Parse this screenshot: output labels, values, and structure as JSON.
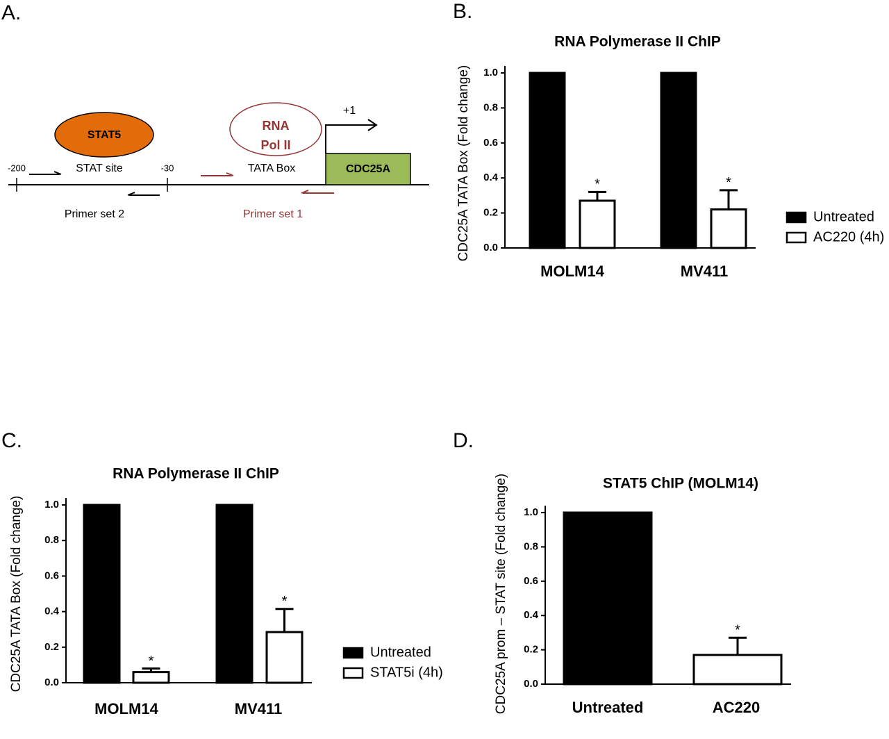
{
  "panel_labels": [
    "A.",
    "B.",
    "C.",
    "D."
  ],
  "diagram": {
    "stat5": "STAT5",
    "pol2": [
      "RNA",
      "Pol II"
    ],
    "tss": "+1",
    "pos_200": "-200",
    "stat_site": "STAT site",
    "pos_30": "-30",
    "tata_box": "TATA Box",
    "gene": "CDC25A",
    "primer2": "Primer set 2",
    "primer1": "Primer set 1"
  },
  "chart_data": [
    {
      "type": "bar",
      "title": "RNA Polymerase II ChIP",
      "y_label": "CDC25A TATA Box (Fold change)",
      "categories": [
        "MOLM14",
        "MV411"
      ],
      "series": [
        {
          "name": "Untreated",
          "color": "#000000",
          "values": [
            1,
            1
          ]
        },
        {
          "name": "AC220 (4h)",
          "color": "#ffffff",
          "values": [
            0.27,
            0.22
          ],
          "errors": [
            0.05,
            0.11
          ],
          "significance": [
            "*",
            "*"
          ]
        }
      ],
      "ylim": [
        0,
        1
      ],
      "yticks": [
        {
          "value": 0,
          "label": "0.0"
        },
        {
          "value": 0.2,
          "label": "0.2"
        },
        {
          "value": 0.4,
          "label": "0.4"
        },
        {
          "value": 0.6,
          "label": "0.6"
        },
        {
          "value": 0.8,
          "label": "0.8"
        },
        {
          "value": 1,
          "label": "1.0"
        }
      ],
      "legend": "right"
    },
    {
      "type": "bar",
      "title": "RNA Polymerase II ChIP",
      "y_label": "CDC25A TATA Box (Fold change)",
      "categories": [
        "MOLM14",
        "MV411"
      ],
      "series": [
        {
          "name": "Untreated",
          "color": "#000000",
          "values": [
            1,
            1
          ]
        },
        {
          "name": "STAT5i (4h)",
          "color": "#ffffff",
          "values": [
            0.06,
            0.285
          ],
          "errors": [
            0.02,
            0.13
          ],
          "significance": [
            "*",
            "*"
          ]
        }
      ],
      "ylim": [
        0,
        1
      ],
      "yticks": [
        {
          "value": 0,
          "label": "0.0"
        },
        {
          "value": 0.2,
          "label": "0.2"
        },
        {
          "value": 0.4,
          "label": "0.4"
        },
        {
          "value": 0.6,
          "label": "0.6"
        },
        {
          "value": 0.8,
          "label": "0.8"
        },
        {
          "value": 1,
          "label": "1.0"
        }
      ],
      "legend": "right"
    },
    {
      "type": "bar",
      "title": "STAT5 ChIP (MOLM14)",
      "y_label": "CDC25A prom – STAT site (Fold change)",
      "categories": [
        "Untreated",
        "AC220"
      ],
      "series": [
        {
          "colors": [
            "#000000",
            "#ffffff"
          ],
          "values": [
            1,
            0.17
          ],
          "errors": [
            null,
            0.1
          ],
          "significance": [
            null,
            "*"
          ]
        }
      ],
      "ylim": [
        0,
        1
      ],
      "yticks": [
        {
          "value": 0,
          "label": "0.0"
        },
        {
          "value": 0.2,
          "label": "0.2"
        },
        {
          "value": 0.4,
          "label": "0.4"
        },
        {
          "value": 0.6,
          "label": "0.6"
        },
        {
          "value": 0.8,
          "label": "0.8"
        },
        {
          "value": 1,
          "label": "1.0"
        }
      ]
    }
  ]
}
